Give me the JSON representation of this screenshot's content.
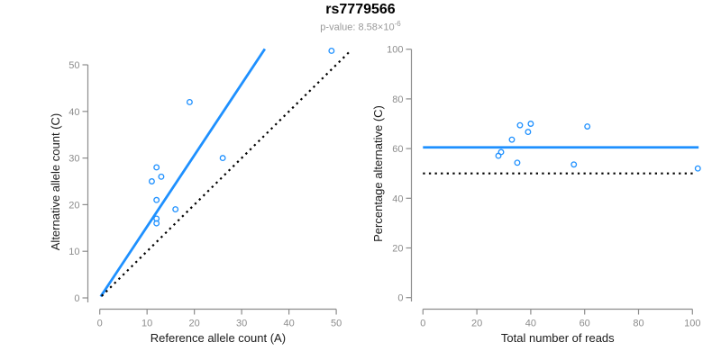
{
  "header": {
    "title": "rs7779566",
    "p_value_prefix": "p-value: 8.58×10",
    "p_value_exponent": "-6"
  },
  "theme": {
    "background": "#ffffff",
    "accent_blue": "#1E90FF",
    "axis_color": "#8C8C8C",
    "tick_label_color": "#8C8C8C",
    "axis_title_color": "#1A1A1A",
    "subtitle_color": "#999999",
    "reference_line_color": "#000000"
  },
  "chart_data": [
    {
      "type": "scatter",
      "id": "left-panel",
      "xlabel": "Reference allele count (A)",
      "ylabel": "Alternative allele count (C)",
      "xlim": [
        0,
        50
      ],
      "ylim": [
        0,
        50
      ],
      "xticks": [
        0,
        10,
        20,
        30,
        40,
        50
      ],
      "yticks": [
        0,
        10,
        20,
        30,
        40,
        50
      ],
      "grid": false,
      "legend": "none",
      "point_color": "#1E90FF",
      "points": [
        [
          19,
          42
        ],
        [
          26,
          30
        ],
        [
          12,
          28
        ],
        [
          13,
          26
        ],
        [
          11,
          25
        ],
        [
          12,
          21
        ],
        [
          16,
          19
        ],
        [
          12,
          17
        ],
        [
          12,
          16
        ],
        [
          49,
          53
        ]
      ],
      "lines": [
        {
          "name": "fit-line",
          "slope": 1.53,
          "intercept": 0,
          "x_start": 0.2,
          "x_end": 34.9,
          "style": "solid",
          "color": "#1E90FF",
          "width": 2.8
        },
        {
          "name": "identity-line",
          "slope": 1,
          "intercept": 0,
          "x_start": 0.4,
          "x_end": 52.8,
          "style": "dotted",
          "color": "#000000",
          "width": 2.2
        }
      ]
    },
    {
      "type": "scatter",
      "id": "right-panel",
      "xlabel": "Total number of reads",
      "ylabel": "Percentage alternative (C)",
      "xlim": [
        0,
        100
      ],
      "ylim": [
        0,
        100
      ],
      "xticks": [
        0,
        20,
        40,
        60,
        80,
        100
      ],
      "yticks": [
        0,
        20,
        40,
        60,
        80,
        100
      ],
      "grid": false,
      "legend": "none",
      "point_color": "#1E90FF",
      "points": [
        [
          61,
          68.9
        ],
        [
          56,
          53.6
        ],
        [
          40,
          70
        ],
        [
          39,
          66.7
        ],
        [
          36,
          69.4
        ],
        [
          33,
          63.6
        ],
        [
          35,
          54.3
        ],
        [
          29,
          58.6
        ],
        [
          28,
          57.1
        ],
        [
          102,
          52
        ]
      ],
      "lines": [
        {
          "name": "mean-line",
          "slope": 0,
          "intercept": 60.5,
          "x_start": 0,
          "x_end": 102.3,
          "style": "solid",
          "color": "#1E90FF",
          "width": 2.8
        },
        {
          "name": "null-line",
          "slope": 0,
          "intercept": 50,
          "x_start": 0,
          "x_end": 101.2,
          "style": "dotted",
          "color": "#000000",
          "width": 2.2
        }
      ]
    }
  ]
}
